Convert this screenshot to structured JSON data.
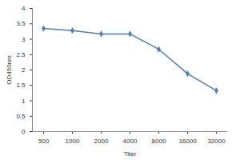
{
  "chart_data": {
    "type": "line",
    "categories": [
      "500",
      "1000",
      "2000",
      "4000",
      "8000",
      "16000",
      "32000"
    ],
    "values": [
      3.35,
      3.28,
      3.17,
      3.17,
      2.67,
      1.88,
      1.33
    ],
    "color": "#4a7ebb",
    "marker": "diamond",
    "x_label": "Titer",
    "y_label": "OD450nm",
    "ylim": [
      0,
      4
    ],
    "yticks": [
      0,
      0.5,
      1,
      1.5,
      2,
      2.5,
      3,
      3.5,
      4
    ],
    "grid": false
  }
}
